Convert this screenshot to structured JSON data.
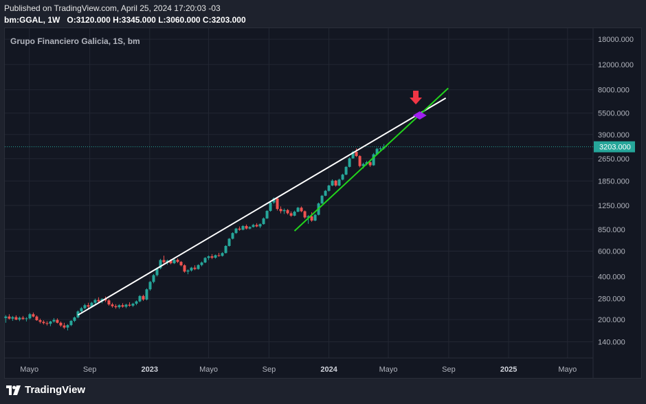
{
  "header": {
    "published": "Published on TradingView.com, April 25, 2024 17:20:03 -03",
    "symbol_line": "bm:GGAL, 1W",
    "o_label": "O:",
    "o_value": "3120.000",
    "h_label": "H:",
    "h_value": "3345.000",
    "l_label": "L:",
    "l_value": "3060.000",
    "c_label": "C:",
    "c_value": "3203.000"
  },
  "chart_title": "Grupo Financiero Galicia, 1S, bm",
  "footer": {
    "brand": "TradingView"
  },
  "colors": {
    "up": "#26a69a",
    "down": "#ef5350",
    "resistance": "#ffffff",
    "support": "#22d41c",
    "arrow": "#f23645",
    "diamond": "#a020f0",
    "price_label_bg": "#26a69a"
  },
  "chart_data": {
    "type": "candlestick",
    "title": "Grupo Financiero Galicia, 1S, bm",
    "scale": "logarithmic",
    "y_ticks": [
      140,
      200,
      280,
      400,
      600,
      850,
      1250,
      1850,
      2650,
      3900,
      5500,
      8000,
      12000,
      18000
    ],
    "y_tick_labels": [
      "140.000",
      "200.000",
      "280.000",
      "400.000",
      "600.000",
      "850.000",
      "1250.000",
      "1850.000",
      "2650.000",
      "3900.000",
      "5500.000",
      "8000.000",
      "12000.000",
      "18000.000"
    ],
    "ylim": [
      108,
      21500
    ],
    "x_range": [
      "2022-03-12",
      "2025-06-22"
    ],
    "x_ticks": [
      {
        "label": "Mayo",
        "date": "2022-05-01",
        "bold": false
      },
      {
        "label": "Sep",
        "date": "2022-09-01",
        "bold": false
      },
      {
        "label": "2023",
        "date": "2023-01-01",
        "bold": true
      },
      {
        "label": "Mayo",
        "date": "2023-05-01",
        "bold": false
      },
      {
        "label": "Sep",
        "date": "2023-09-01",
        "bold": false
      },
      {
        "label": "2024",
        "date": "2024-01-01",
        "bold": true
      },
      {
        "label": "Mayo",
        "date": "2024-05-01",
        "bold": false
      },
      {
        "label": "Sep",
        "date": "2024-09-01",
        "bold": false
      },
      {
        "label": "2025",
        "date": "2025-01-01",
        "bold": true
      },
      {
        "label": "Mayo",
        "date": "2025-05-01",
        "bold": false
      }
    ],
    "last_price": 3203,
    "last_price_label": "3203.000",
    "series": [
      {
        "date": "2022-03-14",
        "o": 205,
        "h": 215,
        "l": 190,
        "c": 210
      },
      {
        "date": "2022-03-21",
        "o": 210,
        "h": 218,
        "l": 200,
        "c": 203
      },
      {
        "date": "2022-03-28",
        "o": 203,
        "h": 212,
        "l": 196,
        "c": 208
      },
      {
        "date": "2022-04-04",
        "o": 208,
        "h": 214,
        "l": 198,
        "c": 200
      },
      {
        "date": "2022-04-11",
        "o": 200,
        "h": 210,
        "l": 195,
        "c": 206
      },
      {
        "date": "2022-04-18",
        "o": 206,
        "h": 212,
        "l": 199,
        "c": 202
      },
      {
        "date": "2022-04-25",
        "o": 202,
        "h": 208,
        "l": 194,
        "c": 204
      },
      {
        "date": "2022-05-02",
        "o": 204,
        "h": 222,
        "l": 201,
        "c": 218
      },
      {
        "date": "2022-05-09",
        "o": 218,
        "h": 224,
        "l": 207,
        "c": 210
      },
      {
        "date": "2022-05-16",
        "o": 210,
        "h": 214,
        "l": 196,
        "c": 198
      },
      {
        "date": "2022-05-23",
        "o": 198,
        "h": 203,
        "l": 188,
        "c": 193
      },
      {
        "date": "2022-05-30",
        "o": 193,
        "h": 198,
        "l": 185,
        "c": 189
      },
      {
        "date": "2022-06-06",
        "o": 189,
        "h": 195,
        "l": 182,
        "c": 187
      },
      {
        "date": "2022-06-13",
        "o": 187,
        "h": 196,
        "l": 180,
        "c": 194
      },
      {
        "date": "2022-06-20",
        "o": 194,
        "h": 205,
        "l": 190,
        "c": 199
      },
      {
        "date": "2022-06-27",
        "o": 199,
        "h": 204,
        "l": 188,
        "c": 190
      },
      {
        "date": "2022-07-04",
        "o": 190,
        "h": 194,
        "l": 178,
        "c": 182
      },
      {
        "date": "2022-07-11",
        "o": 182,
        "h": 190,
        "l": 172,
        "c": 176
      },
      {
        "date": "2022-07-18",
        "o": 176,
        "h": 186,
        "l": 168,
        "c": 183
      },
      {
        "date": "2022-07-25",
        "o": 183,
        "h": 198,
        "l": 180,
        "c": 196
      },
      {
        "date": "2022-08-01",
        "o": 196,
        "h": 210,
        "l": 192,
        "c": 207
      },
      {
        "date": "2022-08-08",
        "o": 207,
        "h": 232,
        "l": 204,
        "c": 228
      },
      {
        "date": "2022-08-15",
        "o": 228,
        "h": 245,
        "l": 224,
        "c": 240
      },
      {
        "date": "2022-08-22",
        "o": 240,
        "h": 258,
        "l": 236,
        "c": 252
      },
      {
        "date": "2022-08-29",
        "o": 252,
        "h": 262,
        "l": 240,
        "c": 246
      },
      {
        "date": "2022-09-05",
        "o": 246,
        "h": 266,
        "l": 243,
        "c": 262
      },
      {
        "date": "2022-09-12",
        "o": 262,
        "h": 280,
        "l": 256,
        "c": 274
      },
      {
        "date": "2022-09-19",
        "o": 274,
        "h": 286,
        "l": 262,
        "c": 268
      },
      {
        "date": "2022-09-26",
        "o": 268,
        "h": 282,
        "l": 260,
        "c": 278
      },
      {
        "date": "2022-10-03",
        "o": 278,
        "h": 290,
        "l": 265,
        "c": 272
      },
      {
        "date": "2022-10-10",
        "o": 272,
        "h": 278,
        "l": 250,
        "c": 255
      },
      {
        "date": "2022-10-17",
        "o": 255,
        "h": 262,
        "l": 242,
        "c": 248
      },
      {
        "date": "2022-10-24",
        "o": 248,
        "h": 256,
        "l": 238,
        "c": 244
      },
      {
        "date": "2022-10-31",
        "o": 244,
        "h": 256,
        "l": 238,
        "c": 252
      },
      {
        "date": "2022-11-07",
        "o": 252,
        "h": 260,
        "l": 242,
        "c": 246
      },
      {
        "date": "2022-11-14",
        "o": 246,
        "h": 258,
        "l": 240,
        "c": 254
      },
      {
        "date": "2022-11-21",
        "o": 254,
        "h": 264,
        "l": 246,
        "c": 250
      },
      {
        "date": "2022-11-28",
        "o": 250,
        "h": 262,
        "l": 245,
        "c": 258
      },
      {
        "date": "2022-12-05",
        "o": 258,
        "h": 272,
        "l": 252,
        "c": 268
      },
      {
        "date": "2022-12-12",
        "o": 268,
        "h": 296,
        "l": 264,
        "c": 292
      },
      {
        "date": "2022-12-19",
        "o": 292,
        "h": 298,
        "l": 270,
        "c": 276
      },
      {
        "date": "2022-12-26",
        "o": 276,
        "h": 330,
        "l": 272,
        "c": 325
      },
      {
        "date": "2023-01-02",
        "o": 325,
        "h": 372,
        "l": 318,
        "c": 366
      },
      {
        "date": "2023-01-09",
        "o": 366,
        "h": 415,
        "l": 358,
        "c": 408
      },
      {
        "date": "2023-01-16",
        "o": 408,
        "h": 462,
        "l": 400,
        "c": 456
      },
      {
        "date": "2023-01-23",
        "o": 456,
        "h": 530,
        "l": 448,
        "c": 520
      },
      {
        "date": "2023-01-30",
        "o": 520,
        "h": 558,
        "l": 490,
        "c": 502
      },
      {
        "date": "2023-02-06",
        "o": 502,
        "h": 524,
        "l": 482,
        "c": 515
      },
      {
        "date": "2023-02-13",
        "o": 515,
        "h": 528,
        "l": 486,
        "c": 494
      },
      {
        "date": "2023-02-20",
        "o": 494,
        "h": 530,
        "l": 488,
        "c": 522
      },
      {
        "date": "2023-02-27",
        "o": 522,
        "h": 534,
        "l": 496,
        "c": 505
      },
      {
        "date": "2023-03-06",
        "o": 505,
        "h": 512,
        "l": 470,
        "c": 478
      },
      {
        "date": "2023-03-13",
        "o": 478,
        "h": 486,
        "l": 425,
        "c": 432
      },
      {
        "date": "2023-03-20",
        "o": 432,
        "h": 448,
        "l": 414,
        "c": 440
      },
      {
        "date": "2023-03-27",
        "o": 440,
        "h": 466,
        "l": 432,
        "c": 460
      },
      {
        "date": "2023-04-03",
        "o": 460,
        "h": 478,
        "l": 442,
        "c": 450
      },
      {
        "date": "2023-04-10",
        "o": 450,
        "h": 486,
        "l": 446,
        "c": 480
      },
      {
        "date": "2023-04-17",
        "o": 480,
        "h": 508,
        "l": 470,
        "c": 500
      },
      {
        "date": "2023-04-24",
        "o": 500,
        "h": 545,
        "l": 495,
        "c": 538
      },
      {
        "date": "2023-05-01",
        "o": 538,
        "h": 560,
        "l": 520,
        "c": 552
      },
      {
        "date": "2023-05-08",
        "o": 552,
        "h": 572,
        "l": 528,
        "c": 540
      },
      {
        "date": "2023-05-15",
        "o": 540,
        "h": 568,
        "l": 532,
        "c": 562
      },
      {
        "date": "2023-05-22",
        "o": 562,
        "h": 584,
        "l": 548,
        "c": 556
      },
      {
        "date": "2023-05-29",
        "o": 556,
        "h": 590,
        "l": 550,
        "c": 582
      },
      {
        "date": "2023-06-05",
        "o": 582,
        "h": 660,
        "l": 578,
        "c": 652
      },
      {
        "date": "2023-06-12",
        "o": 652,
        "h": 740,
        "l": 646,
        "c": 732
      },
      {
        "date": "2023-06-19",
        "o": 732,
        "h": 812,
        "l": 724,
        "c": 802
      },
      {
        "date": "2023-06-26",
        "o": 802,
        "h": 872,
        "l": 792,
        "c": 862
      },
      {
        "date": "2023-07-03",
        "o": 862,
        "h": 892,
        "l": 832,
        "c": 846
      },
      {
        "date": "2023-07-10",
        "o": 846,
        "h": 910,
        "l": 838,
        "c": 898
      },
      {
        "date": "2023-07-17",
        "o": 898,
        "h": 920,
        "l": 850,
        "c": 862
      },
      {
        "date": "2023-07-24",
        "o": 862,
        "h": 894,
        "l": 852,
        "c": 884
      },
      {
        "date": "2023-07-31",
        "o": 884,
        "h": 930,
        "l": 876,
        "c": 914
      },
      {
        "date": "2023-08-07",
        "o": 914,
        "h": 940,
        "l": 880,
        "c": 892
      },
      {
        "date": "2023-08-14",
        "o": 892,
        "h": 936,
        "l": 868,
        "c": 926
      },
      {
        "date": "2023-08-21",
        "o": 926,
        "h": 1030,
        "l": 918,
        "c": 1015
      },
      {
        "date": "2023-08-28",
        "o": 1015,
        "h": 1160,
        "l": 1005,
        "c": 1145
      },
      {
        "date": "2023-09-04",
        "o": 1145,
        "h": 1330,
        "l": 1130,
        "c": 1310
      },
      {
        "date": "2023-09-11",
        "o": 1310,
        "h": 1420,
        "l": 1280,
        "c": 1398
      },
      {
        "date": "2023-09-18",
        "o": 1398,
        "h": 1410,
        "l": 1150,
        "c": 1180
      },
      {
        "date": "2023-09-25",
        "o": 1180,
        "h": 1230,
        "l": 1100,
        "c": 1140
      },
      {
        "date": "2023-10-02",
        "o": 1140,
        "h": 1190,
        "l": 1090,
        "c": 1160
      },
      {
        "date": "2023-10-09",
        "o": 1160,
        "h": 1180,
        "l": 1080,
        "c": 1102
      },
      {
        "date": "2023-10-16",
        "o": 1102,
        "h": 1136,
        "l": 1040,
        "c": 1060
      },
      {
        "date": "2023-10-23",
        "o": 1060,
        "h": 1150,
        "l": 1050,
        "c": 1130
      },
      {
        "date": "2023-10-30",
        "o": 1130,
        "h": 1220,
        "l": 1120,
        "c": 1205
      },
      {
        "date": "2023-11-06",
        "o": 1205,
        "h": 1230,
        "l": 1120,
        "c": 1138
      },
      {
        "date": "2023-11-13",
        "o": 1138,
        "h": 1152,
        "l": 1010,
        "c": 1030
      },
      {
        "date": "2023-11-20",
        "o": 1030,
        "h": 1070,
        "l": 930,
        "c": 1050
      },
      {
        "date": "2023-11-27",
        "o": 1050,
        "h": 1120,
        "l": 960,
        "c": 980
      },
      {
        "date": "2023-12-04",
        "o": 980,
        "h": 1090,
        "l": 970,
        "c": 1075
      },
      {
        "date": "2023-12-11",
        "o": 1075,
        "h": 1310,
        "l": 1065,
        "c": 1290
      },
      {
        "date": "2023-12-18",
        "o": 1290,
        "h": 1480,
        "l": 1280,
        "c": 1460
      },
      {
        "date": "2023-12-25",
        "o": 1460,
        "h": 1600,
        "l": 1450,
        "c": 1580
      },
      {
        "date": "2024-01-01",
        "o": 1580,
        "h": 1740,
        "l": 1560,
        "c": 1720
      },
      {
        "date": "2024-01-08",
        "o": 1720,
        "h": 1900,
        "l": 1700,
        "c": 1860
      },
      {
        "date": "2024-01-15",
        "o": 1860,
        "h": 1880,
        "l": 1690,
        "c": 1720
      },
      {
        "date": "2024-01-22",
        "o": 1720,
        "h": 1920,
        "l": 1700,
        "c": 1890
      },
      {
        "date": "2024-01-29",
        "o": 1890,
        "h": 2080,
        "l": 1870,
        "c": 2050
      },
      {
        "date": "2024-02-05",
        "o": 2050,
        "h": 2350,
        "l": 2030,
        "c": 2320
      },
      {
        "date": "2024-02-12",
        "o": 2320,
        "h": 2700,
        "l": 2300,
        "c": 2660
      },
      {
        "date": "2024-02-19",
        "o": 2660,
        "h": 3000,
        "l": 2640,
        "c": 2950
      },
      {
        "date": "2024-02-26",
        "o": 2950,
        "h": 3120,
        "l": 2720,
        "c": 2760
      },
      {
        "date": "2024-03-04",
        "o": 2760,
        "h": 2800,
        "l": 2300,
        "c": 2350
      },
      {
        "date": "2024-03-11",
        "o": 2350,
        "h": 2480,
        "l": 2260,
        "c": 2430
      },
      {
        "date": "2024-03-18",
        "o": 2430,
        "h": 2560,
        "l": 2380,
        "c": 2500
      },
      {
        "date": "2024-03-25",
        "o": 2500,
        "h": 2600,
        "l": 2320,
        "c": 2380
      },
      {
        "date": "2024-04-01",
        "o": 2380,
        "h": 2900,
        "l": 2360,
        "c": 2840
      },
      {
        "date": "2024-04-08",
        "o": 2840,
        "h": 3150,
        "l": 2800,
        "c": 3100
      },
      {
        "date": "2024-04-15",
        "o": 3100,
        "h": 3220,
        "l": 2980,
        "c": 3120
      },
      {
        "date": "2024-04-22",
        "o": 3120,
        "h": 3345,
        "l": 3060,
        "c": 3203
      }
    ],
    "trendlines": [
      {
        "name": "Resistance",
        "color": "white",
        "start": {
          "date": "2022-08-08",
          "value": 215
        },
        "end": {
          "date": "2024-08-26",
          "value": 7000
        }
      },
      {
        "name": "Support",
        "color": "green",
        "start": {
          "date": "2023-10-23",
          "value": 830
        },
        "end": {
          "date": "2024-08-31",
          "value": 8200
        }
      }
    ],
    "annotations": [
      {
        "type": "arrow-down",
        "date": "2024-06-26",
        "value": 6900,
        "color": "red"
      },
      {
        "type": "diamond",
        "date": "2024-07-04",
        "value": 5300,
        "color": "purple"
      }
    ]
  }
}
